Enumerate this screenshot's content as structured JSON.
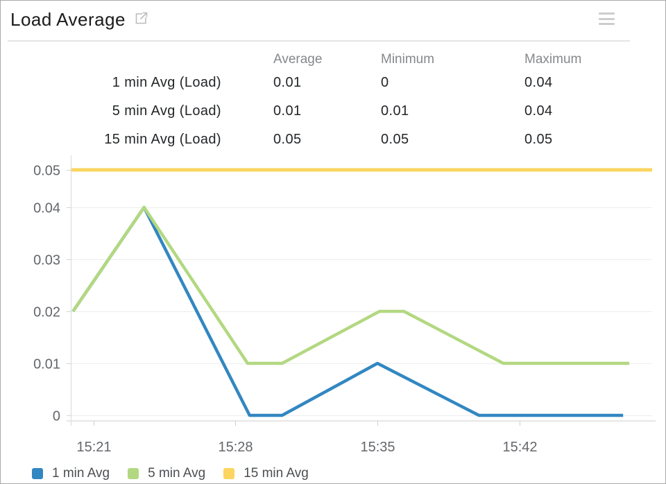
{
  "header": {
    "title": "Load Average"
  },
  "stats_table": {
    "columns": [
      "Average",
      "Minimum",
      "Maximum"
    ],
    "rows": [
      {
        "label": "1 min Avg (Load)",
        "average": "0.01",
        "minimum": "0",
        "maximum": "0.04"
      },
      {
        "label": "5 min Avg (Load)",
        "average": "0.01",
        "minimum": "0.01",
        "maximum": "0.04"
      },
      {
        "label": "15 min Avg (Load)",
        "average": "0.05",
        "minimum": "0.05",
        "maximum": "0.05"
      }
    ]
  },
  "chart_data": {
    "type": "line",
    "title": "Load Average",
    "x_unit": "minutes since 15:20",
    "x_axis": {
      "tick_labels": [
        "15:21",
        "15:28",
        "15:35",
        "15:42"
      ],
      "tick_t": [
        1,
        8,
        15,
        22
      ]
    },
    "y_axis": {
      "tick_labels": [
        "0",
        "0.01",
        "0.02",
        "0.03",
        "0.04",
        "0.05"
      ],
      "tick_values": [
        0,
        0.01,
        0.02,
        0.03,
        0.04,
        0.05
      ],
      "range": [
        0,
        0.05
      ]
    },
    "grid": true,
    "legend_position": "bottom-left",
    "series": [
      {
        "name": "1 min Avg",
        "color": "#3287c1",
        "points": [
          [
            0,
            0.02
          ],
          [
            3.5,
            0.04
          ],
          [
            8.7,
            0
          ],
          [
            10.3,
            0
          ],
          [
            15,
            0.01
          ],
          [
            20,
            0
          ],
          [
            27.1,
            0
          ]
        ]
      },
      {
        "name": "5 min Avg",
        "color": "#b3d881",
        "points": [
          [
            0,
            0.02
          ],
          [
            3.5,
            0.04
          ],
          [
            8.6,
            0.01
          ],
          [
            10.3,
            0.01
          ],
          [
            15.1,
            0.02
          ],
          [
            16.3,
            0.02
          ],
          [
            21.2,
            0.01
          ],
          [
            27.4,
            0.01
          ]
        ]
      },
      {
        "name": "15 min Avg",
        "color": "#fbd55f",
        "points": [
          [
            -0.08,
            0.05
          ],
          [
            28.53,
            0.05
          ]
        ]
      }
    ]
  },
  "legend": {
    "items": [
      {
        "label": "1 min Avg",
        "color": "#3287c1"
      },
      {
        "label": "5 min Avg",
        "color": "#b3d881"
      },
      {
        "label": "15 min Avg",
        "color": "#fbd55f"
      }
    ]
  }
}
